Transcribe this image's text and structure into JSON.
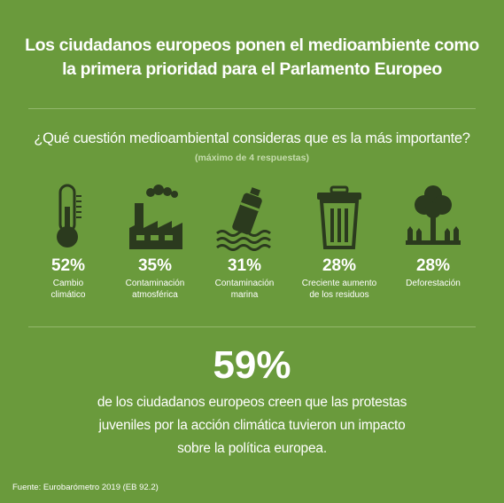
{
  "title_line1": "Los ciudadanos europeos ponen el medioambiente como",
  "title_line2": "la primera prioridad para el Parlamento Europeo",
  "question": "¿Qué cuestión medioambiental consideras que es la más importante?",
  "subnote": "(máximo de 4 respuestas)",
  "items": [
    {
      "icon": "thermometer-icon",
      "percent": "52%",
      "label_line1": "Cambio",
      "label_line2": "climático"
    },
    {
      "icon": "factory-icon",
      "percent": "35%",
      "label_line1": "Contaminación",
      "label_line2": "atmosférica"
    },
    {
      "icon": "bottle-in-water-icon",
      "percent": "31%",
      "label_line1": "Contaminación",
      "label_line2": "marina"
    },
    {
      "icon": "trash-bin-icon",
      "percent": "28%",
      "label_line1": "Creciente aumento",
      "label_line2": "de los residuos"
    },
    {
      "icon": "tree-stumps-icon",
      "percent": "28%",
      "label_line1": "Deforestación",
      "label_line2": ""
    }
  ],
  "highlight_percent": "59%",
  "statement_line1": "de los ciudadanos europeos creen que las protestas",
  "statement_line2": "juveniles por la acción climática tuvieron un impacto",
  "statement_line3": "sobre la política europea.",
  "source": "Fuente: Eurobarómetro 2019 (EB 92.2)",
  "colors": {
    "background": "#6a9a3c",
    "icon_dark": "#2b3a1e",
    "text": "#ffffff"
  }
}
